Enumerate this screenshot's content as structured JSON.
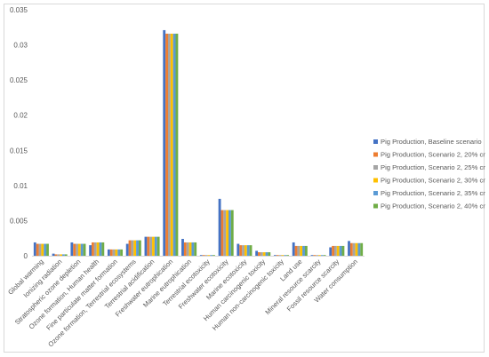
{
  "chart_data": {
    "type": "bar",
    "title": "",
    "xlabel": "",
    "ylabel": "",
    "ylim": [
      0,
      0.035
    ],
    "yticks": [
      "0",
      "0.005",
      "0.01",
      "0.015",
      "0.02",
      "0.025",
      "0.03",
      "0.035"
    ],
    "grid": false,
    "legend_position": "right",
    "categories": [
      "Global warming",
      "Ionizing radiation",
      "Stratospheric ozone depletion",
      "Ozone formation, Human health",
      "Fine particulate matter formation",
      "Ozone formation, Terrestrial ecosystems",
      "Terrestrial acidification",
      "Freshwater eutrophication",
      "Marine eutrophication",
      "Terrestrial ecotoxicity",
      "Freshwater ecotoxicity",
      "Marine ecotoxicity",
      "Human carcinogenic toxicity",
      "Human non-carcinogenic toxicity",
      "Land use",
      "Mineral resource scarcity",
      "Fossil resource scarcity",
      "Water consumption"
    ],
    "series": [
      {
        "name": "Pig Production, Baseline scenario",
        "color": "#4472c4",
        "values": [
          0.0019,
          0.0003,
          0.0019,
          0.0015,
          0.0009,
          0.0017,
          0.0027,
          0.0321,
          0.0024,
          0.0001,
          0.0081,
          0.0017,
          0.0007,
          0.0001,
          0.0019,
          0.0001,
          0.0012,
          0.0021
        ]
      },
      {
        "name": "Pig Production, Scenario 2, 20% cr",
        "color": "#ed7d31",
        "values": [
          0.0017,
          0.0002,
          0.0017,
          0.0019,
          0.0009,
          0.0022,
          0.0027,
          0.0316,
          0.0019,
          0.0001,
          0.0065,
          0.0015,
          0.0005,
          0.0001,
          0.0014,
          0.0001,
          0.0014,
          0.0018
        ]
      },
      {
        "name": "Pig Production, Scenario 2, 25% cr",
        "color": "#a5a5a5",
        "values": [
          0.0017,
          0.0002,
          0.0017,
          0.0019,
          0.0009,
          0.0022,
          0.0027,
          0.0316,
          0.0019,
          0.0001,
          0.0065,
          0.0015,
          0.0005,
          0.0001,
          0.0014,
          0.0001,
          0.0014,
          0.0018
        ]
      },
      {
        "name": "Pig Production, Scenario 2, 30% cr",
        "color": "#ffc000",
        "values": [
          0.0017,
          0.0002,
          0.0017,
          0.0019,
          0.0009,
          0.0022,
          0.0027,
          0.0316,
          0.0019,
          0.0001,
          0.0065,
          0.0015,
          0.0005,
          0.0001,
          0.0014,
          0.0001,
          0.0014,
          0.0018
        ]
      },
      {
        "name": "Pig Production, Scenario 2, 35% cr",
        "color": "#5b9bd5",
        "values": [
          0.0017,
          0.0002,
          0.0017,
          0.0019,
          0.0009,
          0.0022,
          0.0027,
          0.0316,
          0.0019,
          0.0001,
          0.0065,
          0.0015,
          0.0005,
          0.0001,
          0.0014,
          0.0001,
          0.0014,
          0.0018
        ]
      },
      {
        "name": "Pig Production, Scenario 2, 40% cr",
        "color": "#70ad47",
        "values": [
          0.0017,
          0.0002,
          0.0017,
          0.0019,
          0.0009,
          0.0022,
          0.0027,
          0.0316,
          0.0019,
          0.0001,
          0.0065,
          0.0015,
          0.0005,
          0.0001,
          0.0014,
          0.0001,
          0.0014,
          0.0018
        ]
      }
    ]
  }
}
